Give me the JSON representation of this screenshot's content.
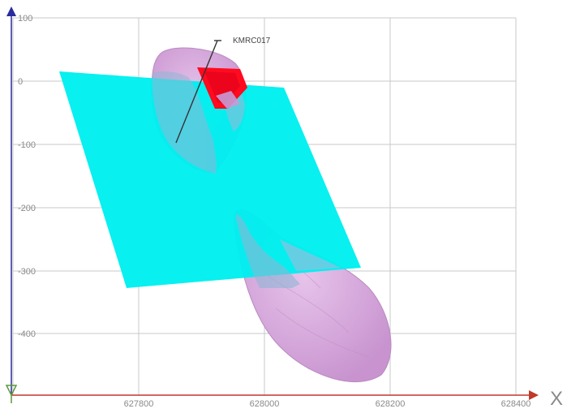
{
  "view": {
    "x_axis_title": "X",
    "x_ticks": [
      "627800",
      "628000",
      "628200",
      "628400"
    ],
    "y_ticks": [
      "100",
      "0",
      "-100",
      "-200",
      "-300",
      "-400"
    ]
  },
  "drillhole": {
    "label": "KMRC017"
  },
  "colors": {
    "grid": "#c8c8c8",
    "x_axis": "#c0392b",
    "y_axis": "#2a2aa0",
    "plane": "#00f0f0",
    "orebody": "#d7a6dc",
    "orebody_edge": "#b98bc0",
    "highlight": "#ff0a1e",
    "drillhole": "#333333"
  }
}
